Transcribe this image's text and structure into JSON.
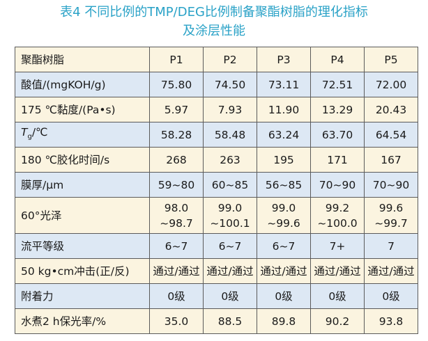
{
  "title": {
    "line1": "表4 不同比例的TMP/DEG比例制备聚酯树脂的理化指标",
    "line2": "及涂层性能"
  },
  "table": {
    "header": [
      "聚酯树脂",
      "P1",
      "P2",
      "P3",
      "P4",
      "P5"
    ],
    "rows": [
      {
        "label": "酸值/(mgKOH/g)",
        "values": [
          "75.80",
          "74.50",
          "73.11",
          "72.51",
          "72.00"
        ]
      },
      {
        "label": "175 ℃黏度/(Pa•s)",
        "values": [
          "5.97",
          "7.93",
          "11.90",
          "13.29",
          "20.43"
        ]
      },
      {
        "label_main": "T",
        "label_sub": "g",
        "label_tail": "/℃",
        "values": [
          "58.28",
          "58.48",
          "63.24",
          "63.70",
          "64.54"
        ]
      },
      {
        "label": "180 ℃胶化时间/s",
        "values": [
          "268",
          "263",
          "195",
          "171",
          "167"
        ]
      },
      {
        "label": "膜厚/μm",
        "values": [
          "59~80",
          "60~85",
          "56~85",
          "70~90",
          "70~90"
        ]
      },
      {
        "label": "60°光泽",
        "values": [
          [
            "98.0",
            "~98.7"
          ],
          [
            "99.0",
            "~100.1"
          ],
          [
            "99.0",
            "~99.6"
          ],
          [
            "99.2",
            "~100.0"
          ],
          [
            "99.6",
            "~99.7"
          ]
        ]
      },
      {
        "label": "流平等级",
        "values": [
          "6~7",
          "6~7",
          "6~7",
          "7+",
          "7"
        ]
      },
      {
        "label": "50 kg•cm冲击(正/反)",
        "values": [
          "通过/通过",
          "通过/通过",
          "通过/通过",
          "通过/通过",
          "通过/通过"
        ]
      },
      {
        "label": "附着力",
        "values": [
          "0级",
          "0级",
          "0级",
          "0级",
          "0级"
        ]
      },
      {
        "label": "水煮2 h保光率/%",
        "values": [
          "35.0",
          "88.5",
          "89.8",
          "90.2",
          "93.8"
        ]
      }
    ]
  }
}
